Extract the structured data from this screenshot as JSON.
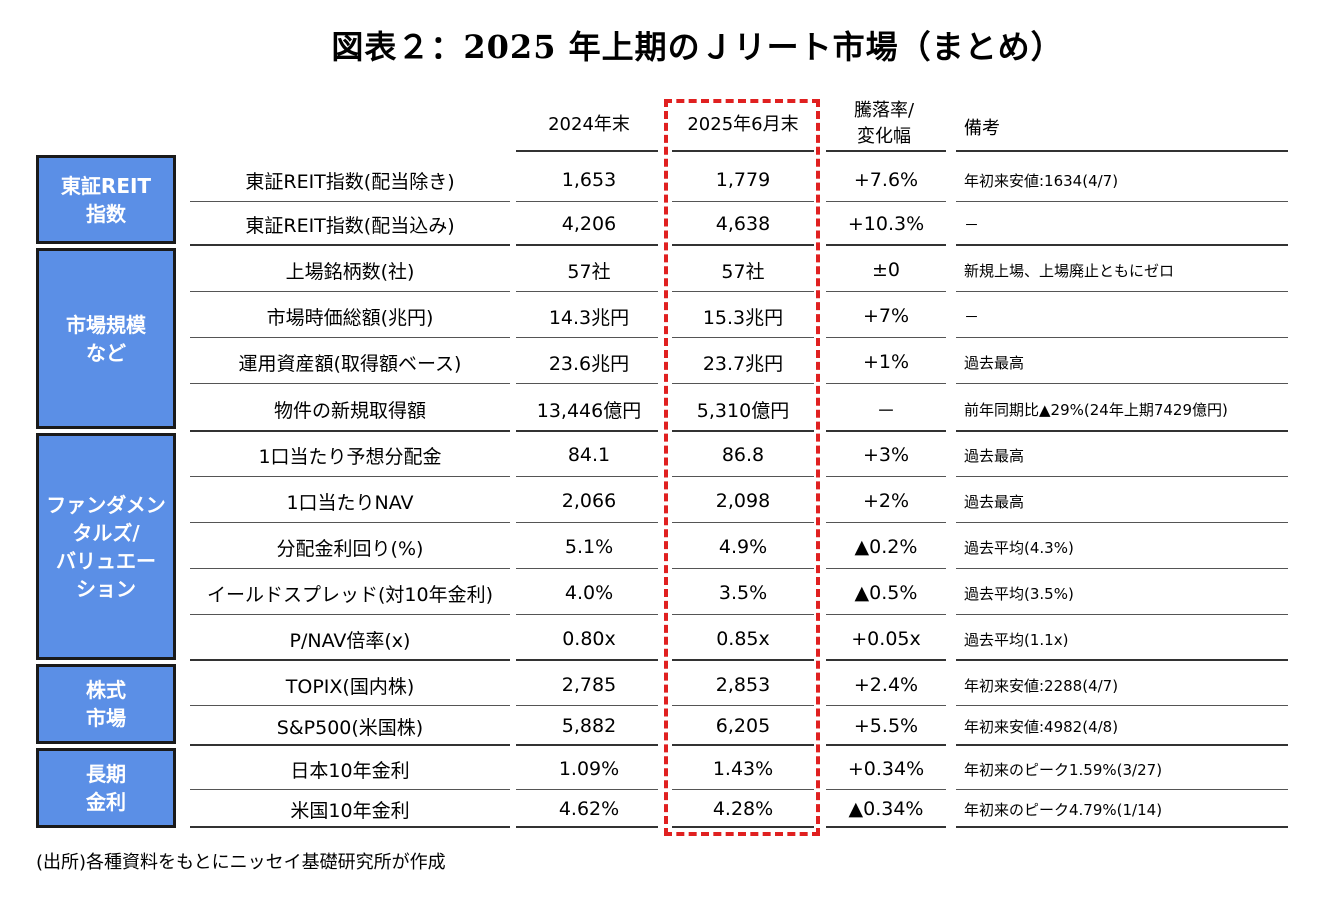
{
  "title": "図表２：2025 年上期のＪリート市場（まとめ）",
  "headers": {
    "end2024": "2024年末",
    "jun2025": "2025年6月末",
    "change_line1": "騰落率/",
    "change_line2": "変化幅",
    "note": "備考"
  },
  "categories": [
    {
      "label": "東証REIT\n指数"
    },
    {
      "label": "市場規模\nなど"
    },
    {
      "label": "ファンダメン\nタルズ/\nバリュエー\nション"
    },
    {
      "label": "株式\n市場"
    },
    {
      "label": "長期\n金利"
    }
  ],
  "rows": [
    {
      "name": "東証REIT指数(配当除き)",
      "end2024": "1,653",
      "jun2025": "1,779",
      "change": "+7.6%",
      "note": "年初来安値:1634(4/7)"
    },
    {
      "name": "東証REIT指数(配当込み)",
      "end2024": "4,206",
      "jun2025": "4,638",
      "change": "+10.3%",
      "note": "－"
    },
    {
      "name": "上場銘柄数(社)",
      "end2024": "57社",
      "jun2025": "57社",
      "change": "±0",
      "note": "新規上場、上場廃止ともにゼロ"
    },
    {
      "name": "市場時価総額(兆円)",
      "end2024": "14.3兆円",
      "jun2025": "15.3兆円",
      "change": "+7%",
      "note": "－"
    },
    {
      "name": "運用資産額(取得額ベース)",
      "end2024": "23.6兆円",
      "jun2025": "23.7兆円",
      "change": "+1%",
      "note": "過去最高"
    },
    {
      "name": "物件の新規取得額",
      "end2024": "13,446億円",
      "jun2025": "5,310億円",
      "change": "－",
      "note": "前年同期比▲29%(24年上期7429億円)"
    },
    {
      "name": "1口当たり予想分配金",
      "end2024": "84.1",
      "jun2025": "86.8",
      "change": "+3%",
      "note": "過去最高"
    },
    {
      "name": "1口当たりNAV",
      "end2024": "2,066",
      "jun2025": "2,098",
      "change": "+2%",
      "note": "過去最高"
    },
    {
      "name": "分配金利回り(%)",
      "end2024": "5.1%",
      "jun2025": "4.9%",
      "change": "▲0.2%",
      "note": "過去平均(4.3%)"
    },
    {
      "name": "イールドスプレッド(対10年金利)",
      "end2024": "4.0%",
      "jun2025": "3.5%",
      "change": "▲0.5%",
      "note": "過去平均(3.5%)"
    },
    {
      "name": "P/NAV倍率(x)",
      "end2024": "0.80x",
      "jun2025": "0.85x",
      "change": "+0.05x",
      "note": "過去平均(1.1x)"
    },
    {
      "name": "TOPIX(国内株)",
      "end2024": "2,785",
      "jun2025": "2,853",
      "change": "+2.4%",
      "note": "年初来安値:2288(4/7)"
    },
    {
      "name": "S&P500(米国株)",
      "end2024": "5,882",
      "jun2025": "6,205",
      "change": "+5.5%",
      "note": "年初来安値:4982(4/8)"
    },
    {
      "name": "日本10年金利",
      "end2024": "1.09%",
      "jun2025": "1.43%",
      "change": "+0.34%",
      "note": "年初来のピーク1.59%(3/27)"
    },
    {
      "name": "米国10年金利",
      "end2024": "4.62%",
      "jun2025": "4.28%",
      "change": "▲0.34%",
      "note": "年初来のピーク4.79%(1/14)"
    }
  ],
  "source": "(出所)各種資料をもとにニッセイ基礎研究所が作成"
}
